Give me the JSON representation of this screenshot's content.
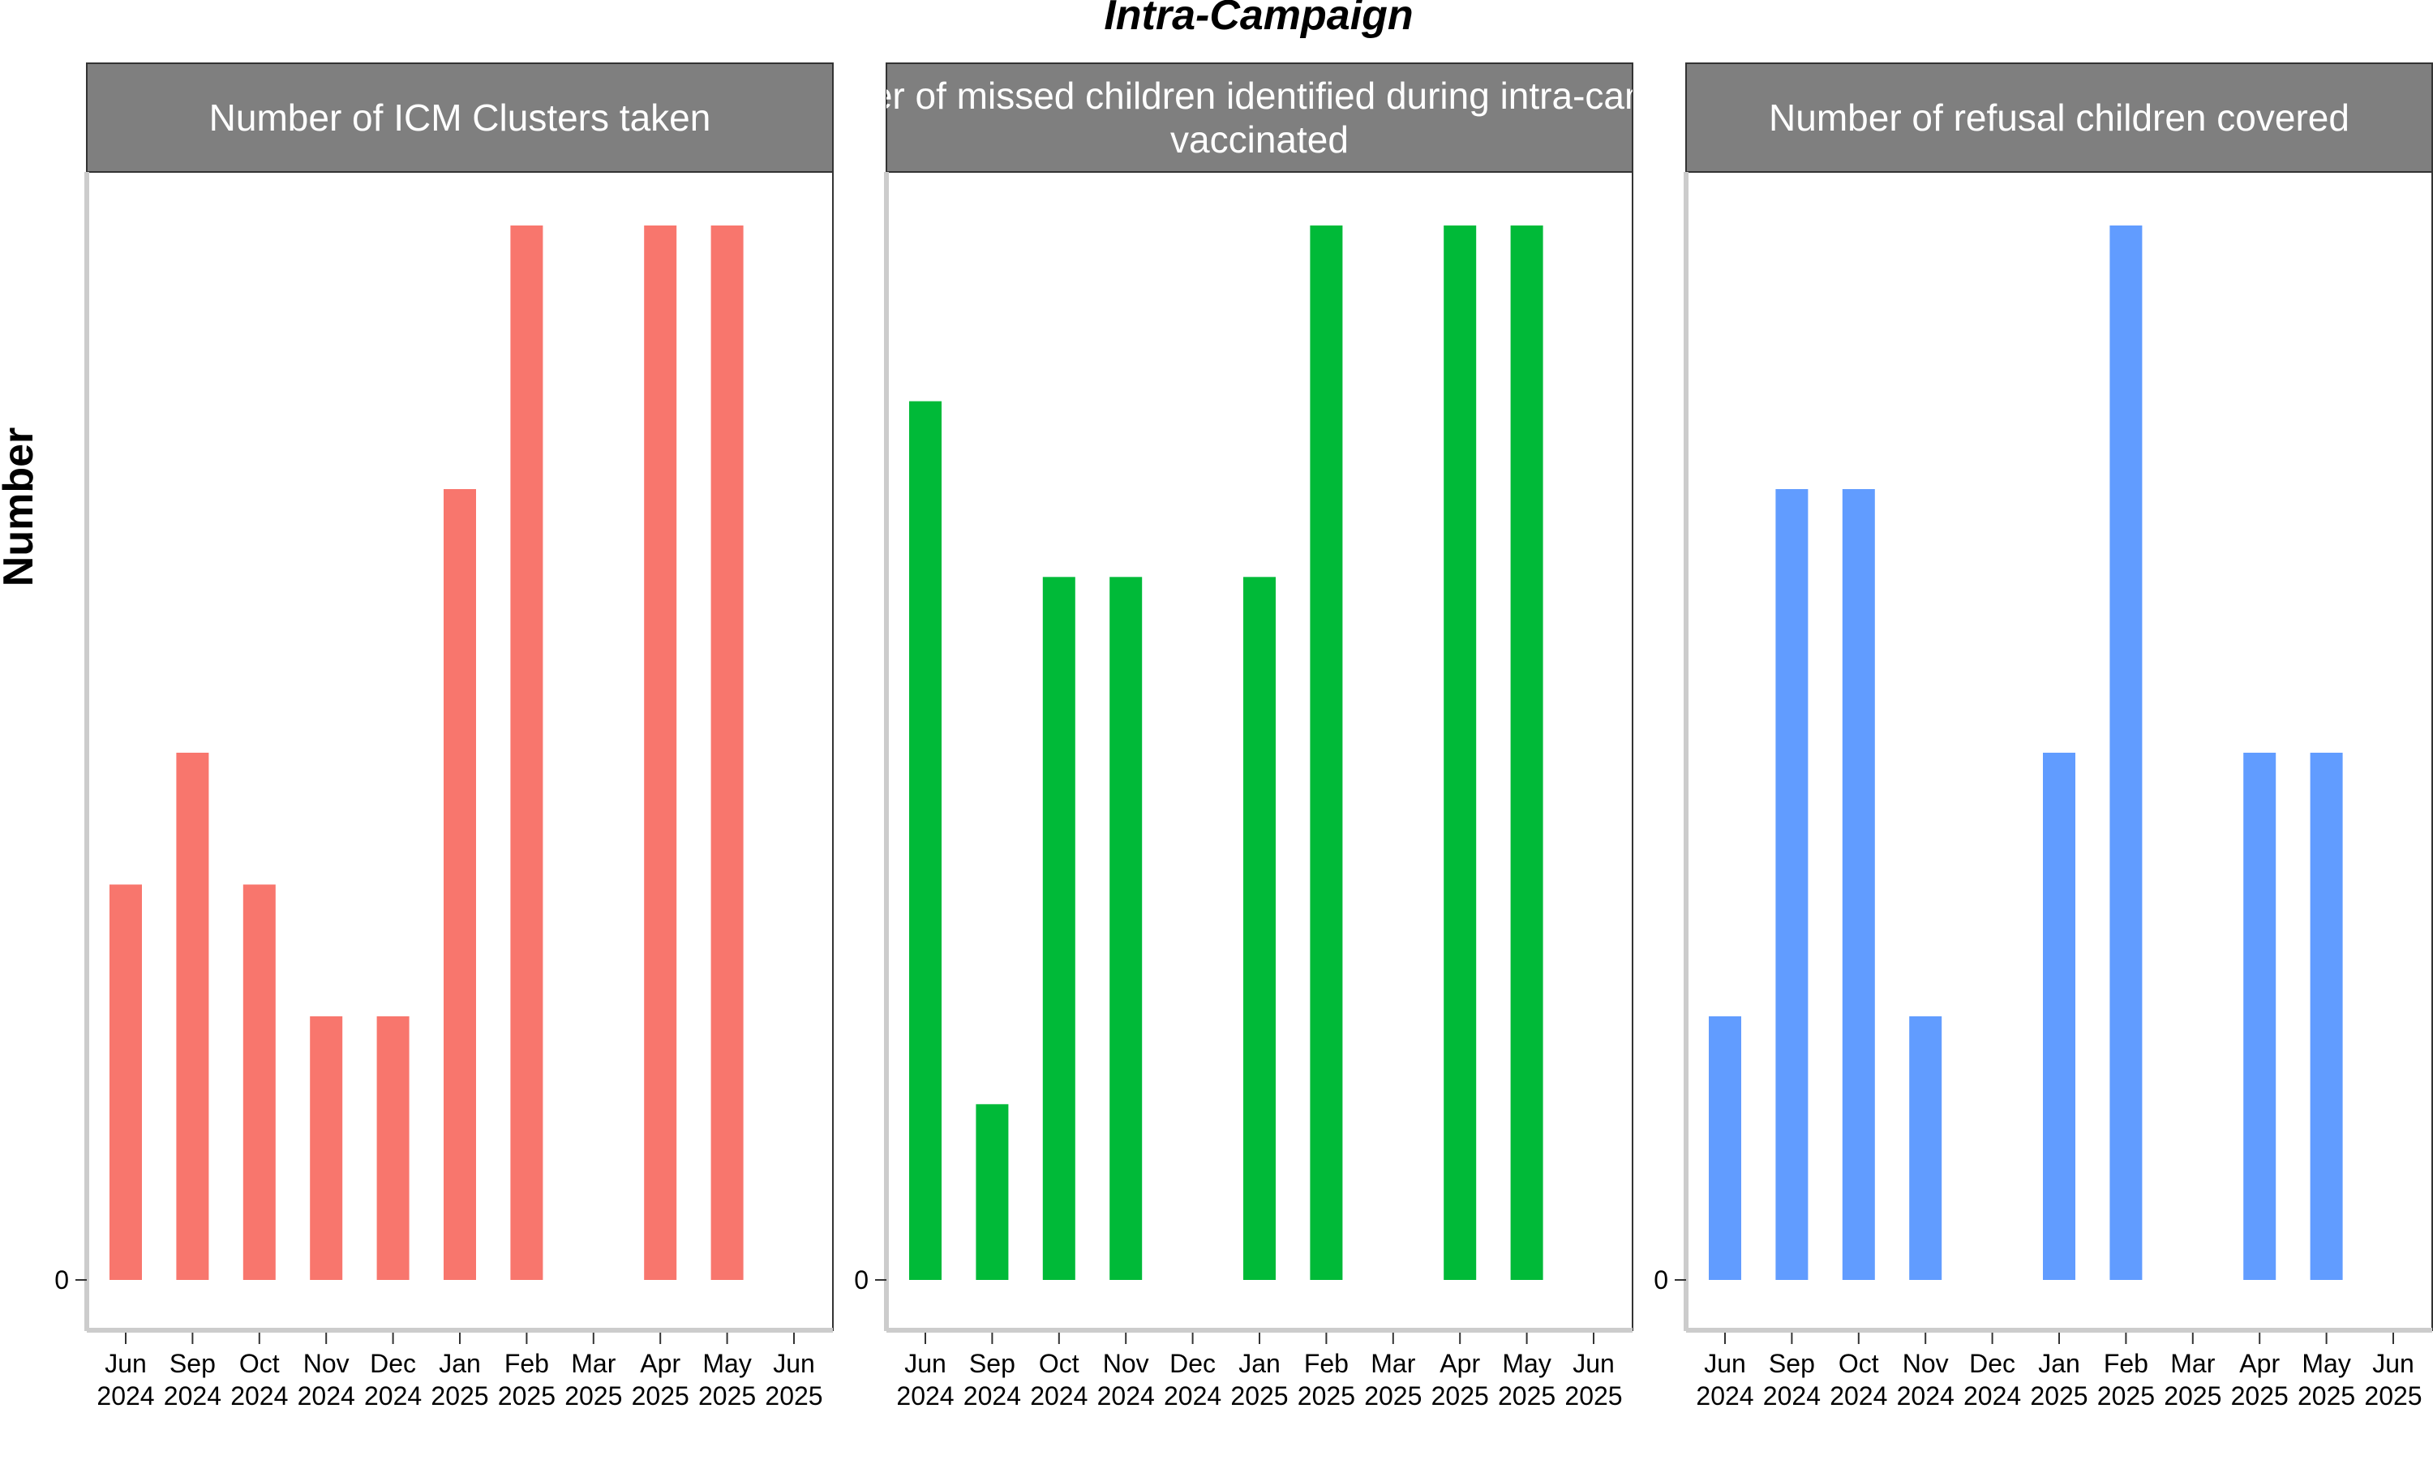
{
  "chart_data": {
    "type": "bar",
    "title": "Intra-Campaign",
    "ylabel": "Number",
    "xlabel": "",
    "categories": [
      [
        "Jun",
        "2024"
      ],
      [
        "Sep",
        "2024"
      ],
      [
        "Oct",
        "2024"
      ],
      [
        "Nov",
        "2024"
      ],
      [
        "Dec",
        "2024"
      ],
      [
        "Jan",
        "2025"
      ],
      [
        "Feb",
        "2025"
      ],
      [
        "Mar",
        "2025"
      ],
      [
        "Apr",
        "2025"
      ],
      [
        "May",
        "2025"
      ],
      [
        "Jun",
        "2025"
      ]
    ],
    "y_tick_labels": [
      "0"
    ],
    "grid": false,
    "legend": "none",
    "facets": [
      {
        "label_lines": [
          "Number of ICM Clusters taken"
        ],
        "color": "#F8766D",
        "ylim": [
          0,
          12
        ],
        "values": [
          4.5,
          6,
          4.5,
          3,
          3,
          9,
          12,
          null,
          12,
          12,
          null
        ]
      },
      {
        "label_lines": [
          "Number of missed children identified during intra-campaign",
          "vaccinated"
        ],
        "color": "#00BA38",
        "ylim": [
          0,
          12
        ],
        "values": [
          10,
          2,
          8,
          8,
          null,
          8,
          12,
          null,
          12,
          12,
          null
        ]
      },
      {
        "label_lines": [
          "Number of refusal children covered"
        ],
        "color": "#619CFF",
        "ylim": [
          0,
          8
        ],
        "values": [
          2,
          6,
          6,
          2,
          null,
          4,
          8,
          null,
          4,
          4,
          null
        ]
      }
    ]
  }
}
